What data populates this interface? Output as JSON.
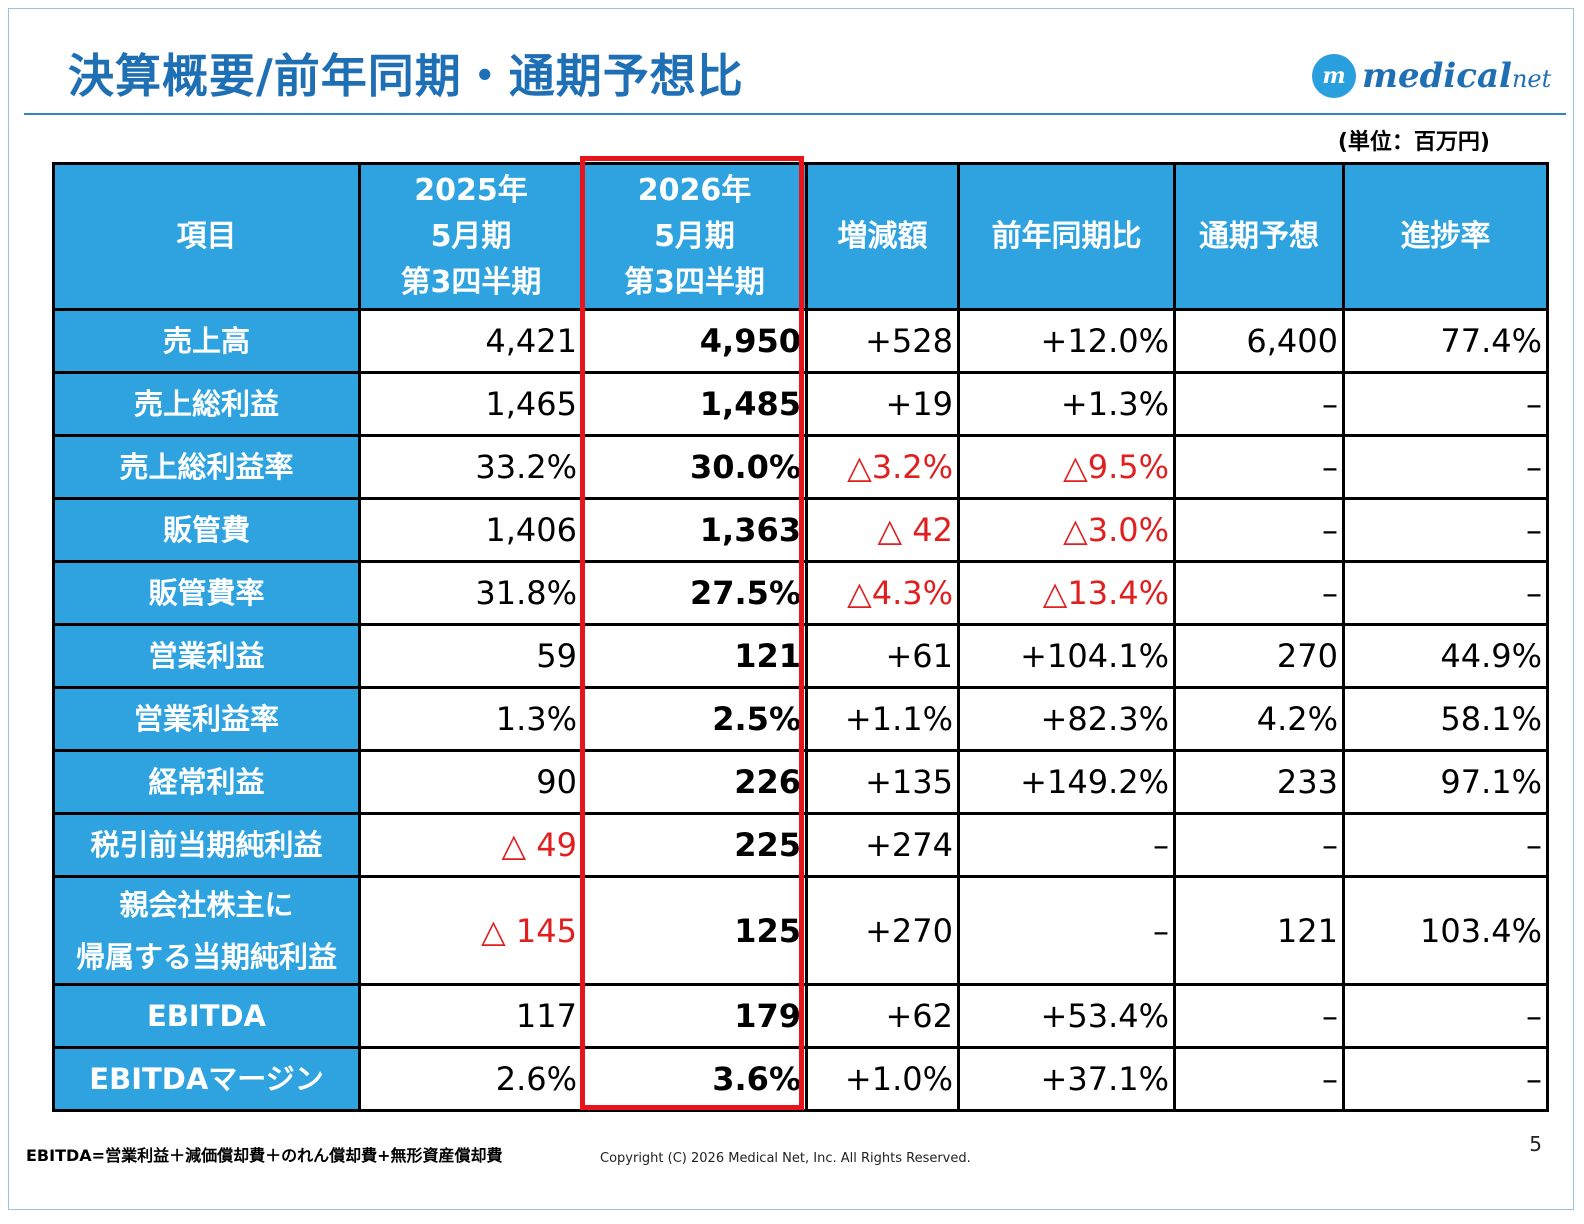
{
  "title": "決算概要/前年同期・通期予想比",
  "logo": {
    "mark": "m",
    "text_main": "medical",
    "text_sub": "net"
  },
  "unit_note": "(単位：百万円)",
  "table": {
    "headers": {
      "item": "項目",
      "prev": [
        "2025年",
        "5月期",
        "第3四半期"
      ],
      "curr": [
        "2026年",
        "5月期",
        "第3四半期"
      ],
      "change": "増減額",
      "yoy": "前年同期比",
      "forecast": "通期予想",
      "progress": "進捗率"
    },
    "rows": [
      {
        "item": "売上高",
        "prev": "4,421",
        "curr": "4,950",
        "change": "+528",
        "yoy": "+12.0%",
        "forecast": "6,400",
        "progress": "77.4%"
      },
      {
        "item": "売上総利益",
        "prev": "1,465",
        "curr": "1,485",
        "change": "+19",
        "yoy": "+1.3%",
        "forecast": "–",
        "progress": "–"
      },
      {
        "item": "売上総利益率",
        "prev": "33.2%",
        "curr": "30.0%",
        "change": "△3.2%",
        "yoy": "△9.5%",
        "forecast": "–",
        "progress": "–"
      },
      {
        "item": "販管費",
        "prev": "1,406",
        "curr": "1,363",
        "change": "△ 42",
        "yoy": "△3.0%",
        "forecast": "–",
        "progress": "–"
      },
      {
        "item": "販管費率",
        "prev": "31.8%",
        "curr": "27.5%",
        "change": "△4.3%",
        "yoy": "△13.4%",
        "forecast": "–",
        "progress": "–"
      },
      {
        "item": "営業利益",
        "prev": "59",
        "curr": "121",
        "change": "+61",
        "yoy": "+104.1%",
        "forecast": "270",
        "progress": "44.9%"
      },
      {
        "item": "営業利益率",
        "prev": "1.3%",
        "curr": "2.5%",
        "change": "+1.1%",
        "yoy": "+82.3%",
        "forecast": "4.2%",
        "progress": "58.1%"
      },
      {
        "item": "経常利益",
        "prev": "90",
        "curr": "226",
        "change": "+135",
        "yoy": "+149.2%",
        "forecast": "233",
        "progress": "97.1%"
      },
      {
        "item": "税引前当期純利益",
        "prev": "△ 49",
        "curr": "225",
        "change": "+274",
        "yoy": "–",
        "forecast": "–",
        "progress": "–"
      },
      {
        "item_line1": "親会社株主に",
        "item_line2": "帰属する当期純利益",
        "prev": "△ 145",
        "curr": "125",
        "change": "+270",
        "yoy": "–",
        "forecast": "121",
        "progress": "103.4%"
      },
      {
        "item": "EBITDA",
        "prev": "117",
        "curr": "179",
        "change": "+62",
        "yoy": "+53.4%",
        "forecast": "–",
        "progress": "–"
      },
      {
        "item": "EBITDAマージン",
        "prev": "2.6%",
        "curr": "3.6%",
        "change": "+1.0%",
        "yoy": "+37.1%",
        "forecast": "–",
        "progress": "–"
      }
    ]
  },
  "negative_color": "#e02020",
  "header_color": "#2ea3e0",
  "highlight_color": "#e8141b",
  "footnote": "EBITDA=営業利益＋減価償却費＋のれん償却費+無形資産償却費",
  "copyright": "Copyright (C) 2026 Medical Net, Inc. All Rights Reserved.",
  "page_number": "5"
}
